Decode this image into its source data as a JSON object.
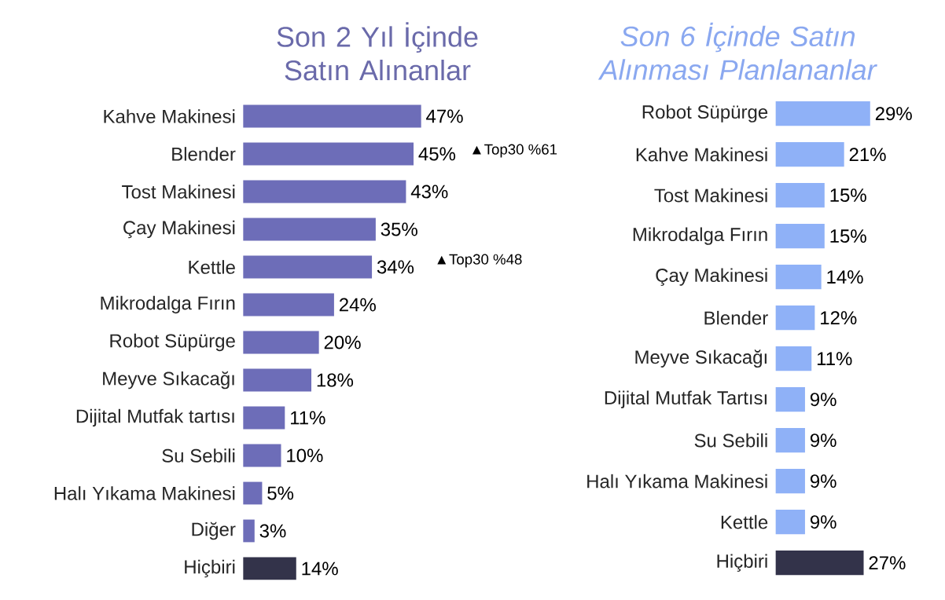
{
  "chart_data": [
    {
      "type": "bar",
      "orientation": "horizontal",
      "title": "Son 2 Yıl İçinde Satın Alınanlar",
      "categories": [
        "Kahve Makinesi",
        "Blender",
        "Tost Makinesi",
        "Çay Makinesi",
        "Kettle",
        "Mikrodalga Fırın",
        "Robot Süpürge",
        "Meyve Sıkacağı",
        "Dijital Mutfak tartısı",
        "Su Sebili",
        "Halı Yıkama Makinesi",
        "Diğer",
        "Hiçbiri"
      ],
      "values": [
        47,
        45,
        43,
        35,
        34,
        24,
        20,
        18,
        11,
        10,
        5,
        3,
        14
      ],
      "value_labels": [
        "47%",
        "45%",
        "43%",
        "35%",
        "34%",
        "24%",
        "20%",
        "18%",
        "11%",
        "10%",
        "5%",
        "3%",
        "14%"
      ],
      "colors": [
        "#6d6db8",
        "#6d6db8",
        "#6d6db8",
        "#6d6db8",
        "#6d6db8",
        "#6d6db8",
        "#6d6db8",
        "#6d6db8",
        "#6d6db8",
        "#6d6db8",
        "#6d6db8",
        "#6d6db8",
        "#33334a"
      ],
      "annotations": [
        "▲Top30 %61",
        "▲Top30 %48"
      ]
    },
    {
      "type": "bar",
      "orientation": "horizontal",
      "title": "Son 6 İçinde Satın Alınması Planlananlar",
      "categories": [
        "Robot Süpürge",
        "Kahve Makinesi",
        "Tost Makinesi",
        "Mikrodalga Fırın",
        "Çay Makinesi",
        "Blender",
        "Meyve Sıkacağı",
        "Dijital Mutfak Tartısı",
        "Su Sebili",
        "Halı Yıkama Makinesi",
        "Kettle",
        "Hiçbiri"
      ],
      "values": [
        29,
        21,
        15,
        15,
        14,
        12,
        11,
        9,
        9,
        9,
        9,
        27
      ],
      "value_labels": [
        "29%",
        "21%",
        "15%",
        "15%",
        "14%",
        "12%",
        "11%",
        "9%",
        "9%",
        "9%",
        "9%",
        "27%"
      ],
      "colors": [
        "#8fb1f7",
        "#8fb1f7",
        "#8fb1f7",
        "#8fb1f7",
        "#8fb1f7",
        "#8fb1f7",
        "#8fb1f7",
        "#8fb1f7",
        "#8fb1f7",
        "#8fb1f7",
        "#8fb1f7",
        "#33334a"
      ]
    }
  ]
}
